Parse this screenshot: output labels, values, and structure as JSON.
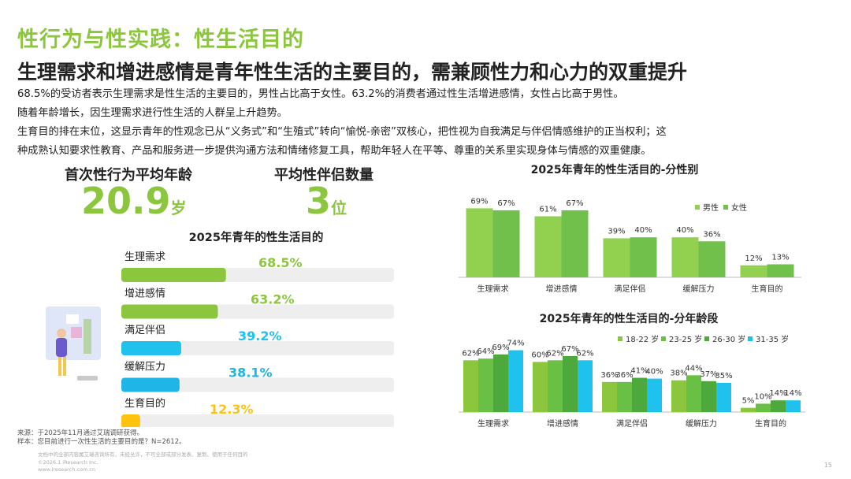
{
  "header": {
    "title": "性行为与性实践：性生活目的",
    "subtitle": "生理需求和增进感情是青年性生活的主要目的，需兼顾性力和心力的双重提升"
  },
  "body_text": {
    "line1": " 68.5%的受访者表示生理需求是性生活的主要目的，男性占比高于女性。63.2%的消费者通过性生活增进感情，女性占比高于男性。",
    "line2": "随着年龄增长，因生理需求进行性生活的人群呈上升趋势。",
    "line3": "生育目的排在末位，这显示青年的性观念已从“义务式”和“生殖式”转向“愉悦-亲密”双核心，把性视为自我满足与伴侣情感维护的正当权利；这",
    "line4": "种成熟认知要求性教育、产品和服务进一步提供沟通方法和情绪修复工具，帮助年轻人在平等、尊重的关系里实现身体与情感的双重健康。"
  },
  "stats": {
    "first_sex_label": "首次性行为平均年龄",
    "first_sex_value": "20.9",
    "first_sex_unit": "岁",
    "partners_label": "平均性伴侣数量",
    "partners_value": "3",
    "partners_unit": "位"
  },
  "colors": {
    "brand_green": "#8cc63f",
    "male_green": "#92d050",
    "female_green": "#70c04b",
    "age_18_22": "#8cc63f",
    "age_23_25": "#6abf45",
    "age_26_30": "#4ea93c",
    "age_31_35": "#1fc2ec",
    "track": "#eeeeee"
  },
  "chart_data": [
    {
      "type": "bar",
      "orientation": "horizontal",
      "title": "2025年青年的性生活目的",
      "categories": [
        "生理需求",
        "增进感情",
        "满足伴侣",
        "缓解压力",
        "生育目的"
      ],
      "values": [
        68.5,
        63.2,
        39.2,
        38.1,
        12.3
      ],
      "value_labels": [
        "68.5%",
        "63.2%",
        "39.2%",
        "38.1%",
        "12.3%"
      ],
      "bar_colors": [
        "#8cc63f",
        "#8cc63f",
        "#1fc2ec",
        "#1fb5e6",
        "#ffc20e"
      ],
      "xlim": [
        0,
        100
      ]
    },
    {
      "type": "bar",
      "title": "2025年青年的性生活目的-分性别",
      "categories": [
        "生理需求",
        "增进感情",
        "满足伴侣",
        "缓解压力",
        "生育目的"
      ],
      "series": [
        {
          "name": "男性",
          "values": [
            69,
            61,
            39,
            40,
            12
          ],
          "labels": [
            "69%",
            "61%",
            "39%",
            "40%",
            "12%"
          ]
        },
        {
          "name": "女性",
          "values": [
            67,
            67,
            40,
            36,
            13
          ],
          "labels": [
            "67%",
            "67%",
            "40%",
            "36%",
            "13%"
          ]
        }
      ],
      "legend": "top-right",
      "ylim": [
        0,
        100
      ]
    },
    {
      "type": "bar",
      "title": "2025年青年的性生活目的-分年龄段",
      "categories": [
        "生理需求",
        "增进感情",
        "满足伴侣",
        "缓解压力",
        "生育目的"
      ],
      "series": [
        {
          "name": "18-22 岁",
          "values": [
            62,
            60,
            36,
            38,
            5
          ],
          "labels": [
            "62%",
            "60%",
            "36%",
            "38%",
            "5%"
          ]
        },
        {
          "name": "23-25 岁",
          "values": [
            64,
            62,
            36,
            44,
            10
          ],
          "labels": [
            "64%",
            "62%",
            "36%",
            "44%",
            "10%"
          ]
        },
        {
          "name": "26-30 岁",
          "values": [
            69,
            67,
            41,
            37,
            14
          ],
          "labels": [
            "69%",
            "67%",
            "41%",
            "37%",
            "14%"
          ]
        },
        {
          "name": "31-35 岁",
          "values": [
            74,
            62,
            40,
            35,
            14
          ],
          "labels": [
            "74%",
            "62%",
            "40%",
            "35%",
            "14%"
          ]
        }
      ],
      "legend": "top-right",
      "ylim": [
        0,
        100
      ]
    }
  ],
  "footer": {
    "source": "来源：于2025年11月通过艾瑞调研获得。",
    "sample": "样本：您目前进行一次性生活的主要目的是？N=2612。",
    "fine1": "文档中的全部内容属艾瑞咨询所有，未经允许，不可全部或部分发表、复制、使用于任何目的",
    "fine2": "©2026.1 iResearch Inc.",
    "fine3": "www.iresearch.com.cn",
    "page": "15"
  }
}
